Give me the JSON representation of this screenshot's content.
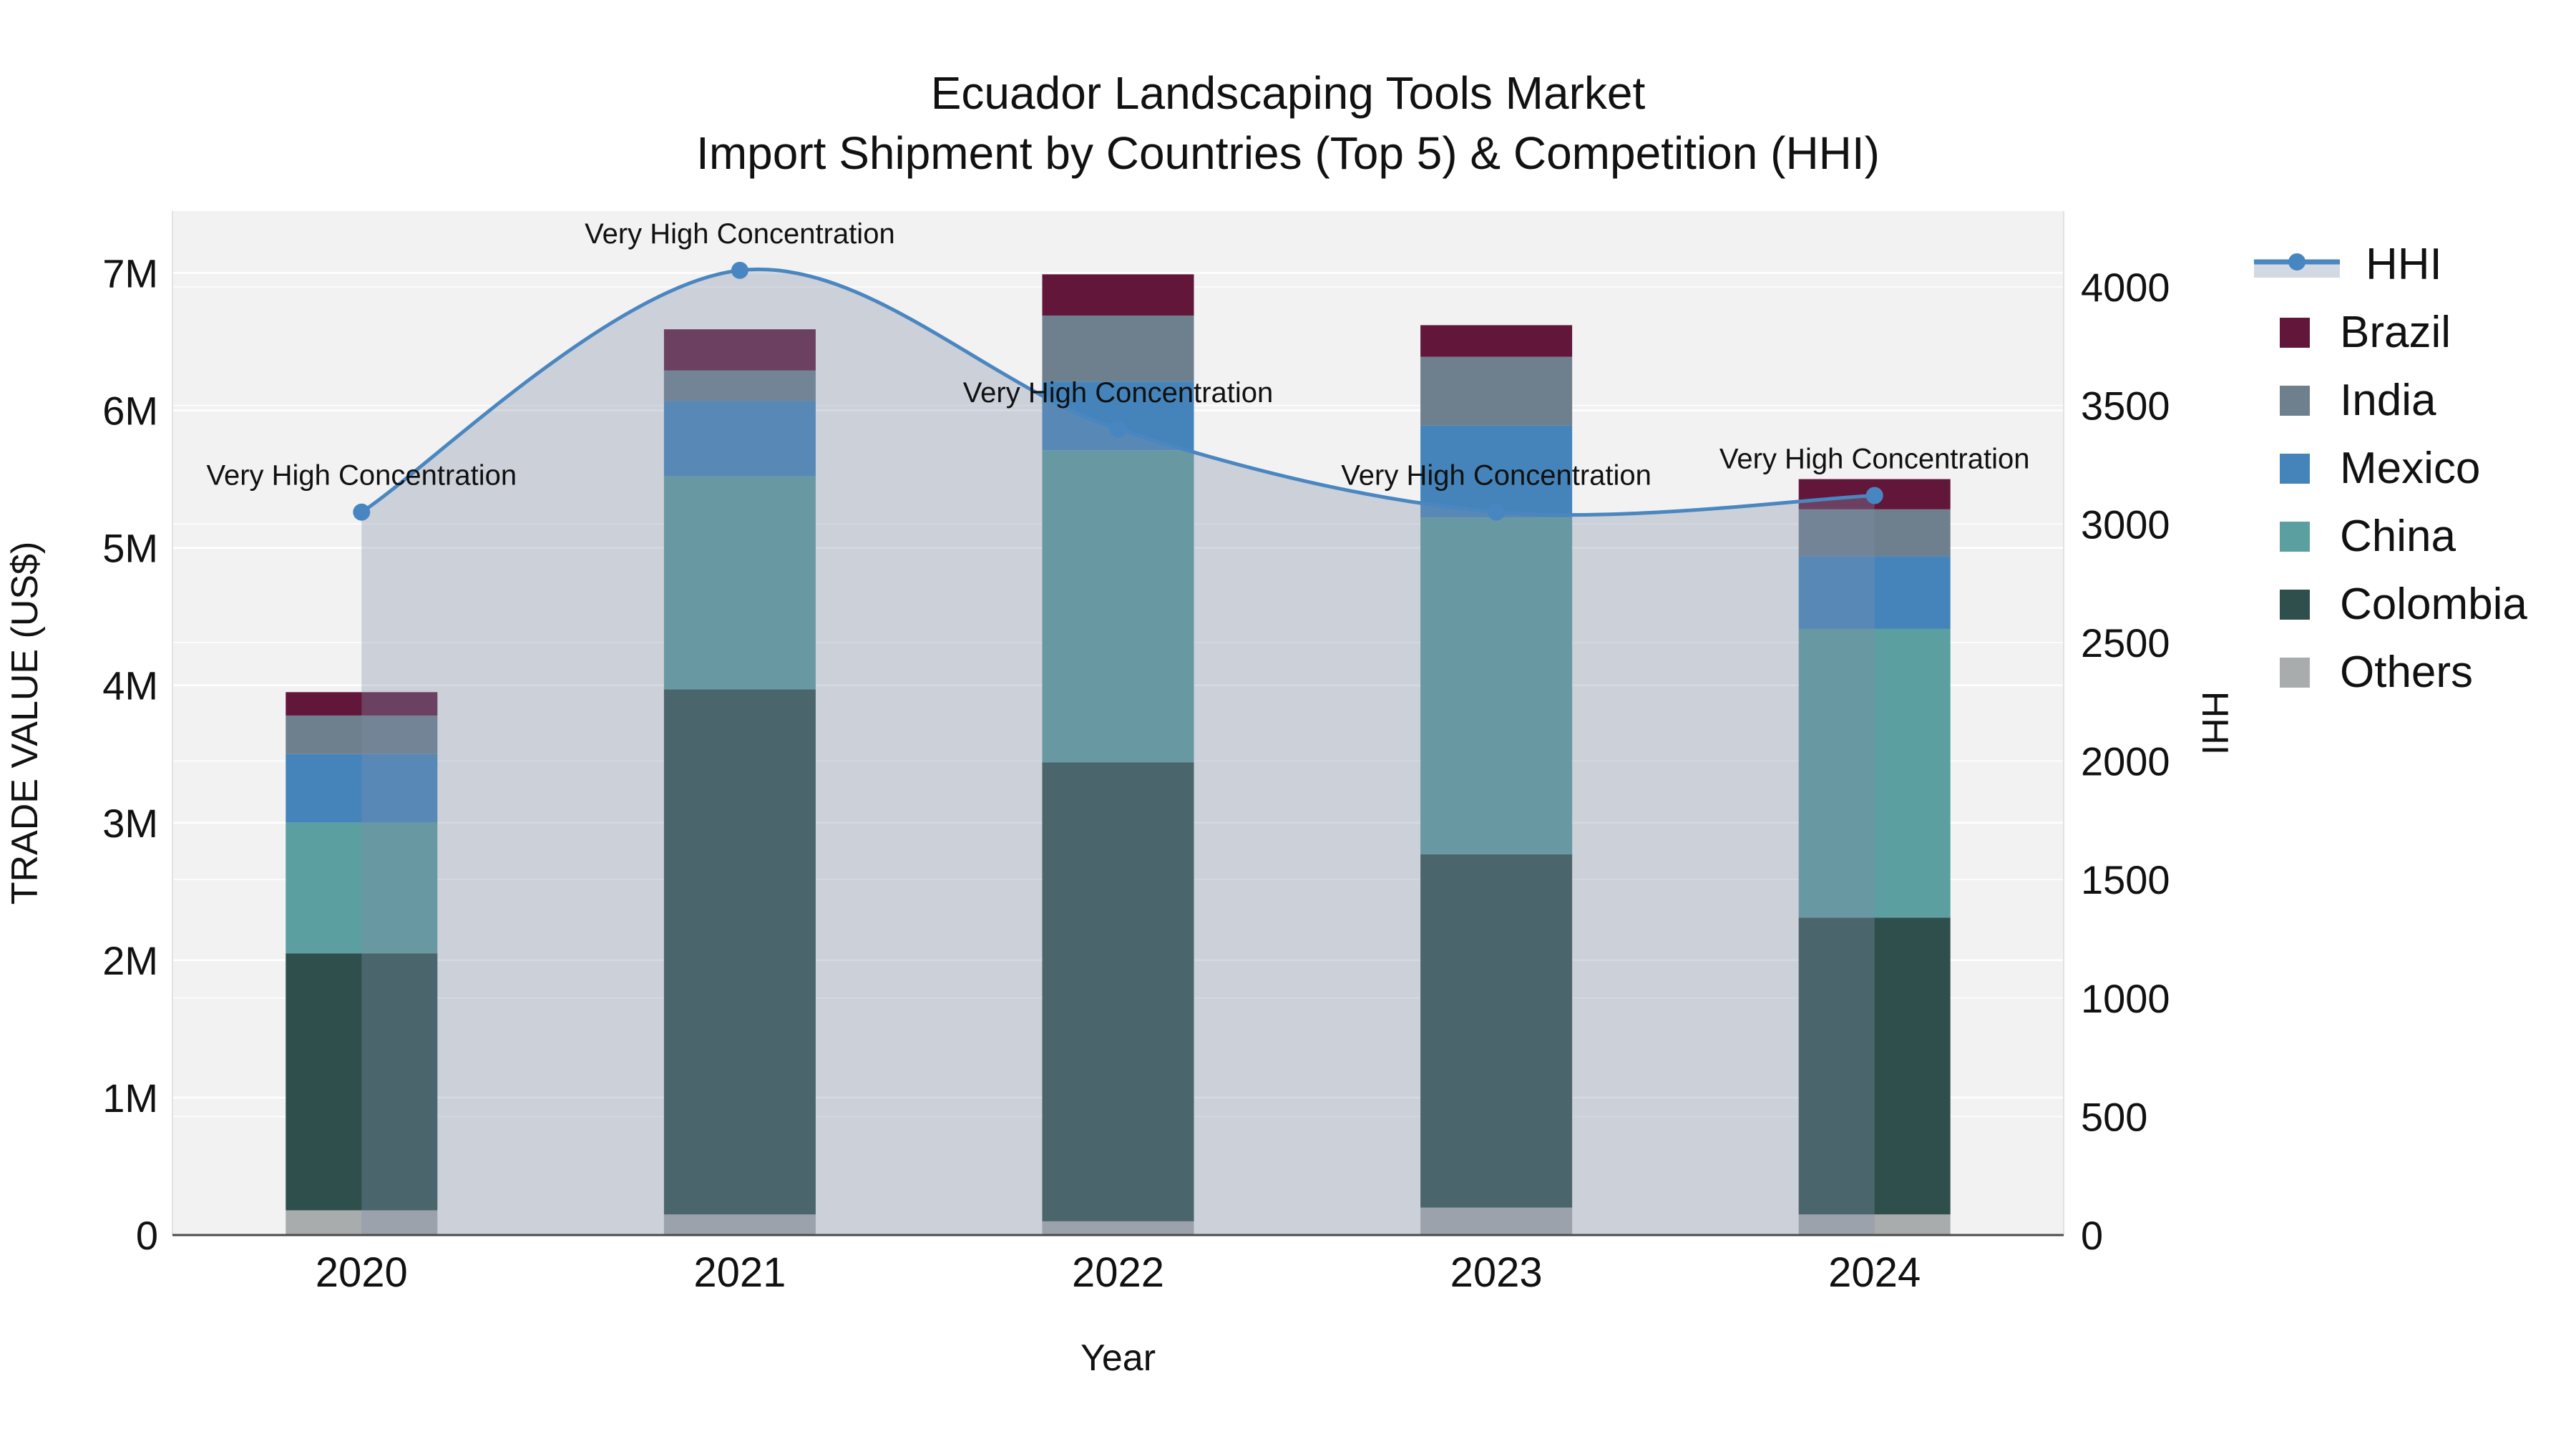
{
  "header": {
    "title_line1": "Ecuador Landscaping Tools Market",
    "title_line2": "Import Shipment by Countries (Top 5) & Competition (HHI)"
  },
  "chart_data": {
    "type": "combo: stacked-bar + line (secondary axis)",
    "categories": [
      "2020",
      "2021",
      "2022",
      "2023",
      "2024"
    ],
    "x_axis": {
      "title": "Year"
    },
    "y_left": {
      "title": "TRADE VALUE (US$)",
      "unit": "M US$",
      "tick_labels": [
        "0",
        "1M",
        "2M",
        "3M",
        "4M",
        "5M",
        "6M",
        "7M"
      ],
      "tick_values_musd": [
        0,
        1,
        2,
        3,
        4,
        5,
        6,
        7
      ],
      "range_musd": [
        0,
        7.45
      ],
      "gridlines": true
    },
    "y_right": {
      "title": "HHI",
      "tick_labels": [
        "0",
        "500",
        "1000",
        "1500",
        "2000",
        "2500",
        "3000",
        "3500",
        "4000"
      ],
      "tick_values": [
        0,
        500,
        1000,
        1500,
        2000,
        2500,
        3000,
        3500,
        4000
      ],
      "range": [
        0,
        4320
      ],
      "gridlines": true
    },
    "bar_series": [
      {
        "key": "others",
        "name": "Others",
        "color": "#a9acad",
        "values_musd": [
          0.18,
          0.15,
          0.1,
          0.2,
          0.15
        ]
      },
      {
        "key": "colombia",
        "name": "Colombia",
        "color": "#2f4f4c",
        "values_musd": [
          1.87,
          3.82,
          3.34,
          2.57,
          2.16
        ]
      },
      {
        "key": "china",
        "name": "China",
        "color": "#5c9fa0",
        "values_musd": [
          0.95,
          1.55,
          2.27,
          2.45,
          2.1
        ]
      },
      {
        "key": "mexico",
        "name": "Mexico",
        "color": "#4484bb",
        "values_musd": [
          0.5,
          0.55,
          0.5,
          0.67,
          0.53
        ]
      },
      {
        "key": "india",
        "name": "India",
        "color": "#6e7f8d",
        "values_musd": [
          0.28,
          0.22,
          0.48,
          0.5,
          0.34
        ]
      },
      {
        "key": "brazil",
        "name": "Brazil",
        "color": "#62173a",
        "values_musd": [
          0.17,
          0.3,
          0.3,
          0.23,
          0.22
        ]
      }
    ],
    "bar_totals_musd": [
      3.95,
      6.59,
      6.99,
      6.62,
      5.5
    ],
    "line_series": {
      "key": "hhi",
      "name": "HHI",
      "color": "#4a86c0",
      "marker_color": "#4886c2",
      "area_fill": "rgba(130,144,171,0.34)",
      "values": [
        3050,
        4070,
        3400,
        3050,
        3120
      ]
    },
    "annotations": [
      {
        "year": "2020",
        "text": "Very High Concentration"
      },
      {
        "year": "2021",
        "text": "Very High Concentration"
      },
      {
        "year": "2022",
        "text": "Very High Concentration"
      },
      {
        "year": "2023",
        "text": "Very High Concentration"
      },
      {
        "year": "2024",
        "text": "Very High Concentration"
      }
    ],
    "legend": {
      "position": "right",
      "order": [
        "HHI",
        "Brazil",
        "India",
        "Mexico",
        "China",
        "Colombia",
        "Others"
      ]
    }
  },
  "colors": {
    "page_bg": "#ffffff",
    "plot_bg": "#f2f2f2",
    "grid": "#ffffff",
    "axis_line": "#4a4a4a",
    "side_spine": "#e2e2e2",
    "text": "#111111",
    "legend_hhi_band": "#d2d9e2"
  }
}
